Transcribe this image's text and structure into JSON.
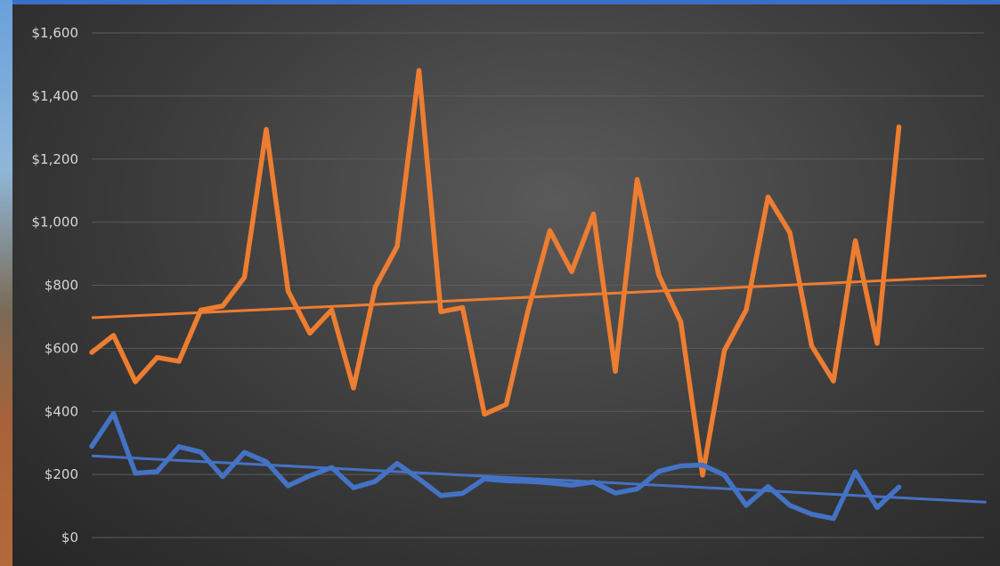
{
  "chart_data": {
    "type": "line",
    "title": "",
    "xlabel": "",
    "ylabel": "",
    "ylim": [
      0,
      1600
    ],
    "yticks": [
      "$0",
      "$200",
      "$400",
      "$600",
      "$800",
      "$1,000",
      "$1,200",
      "$1,400",
      "$1,600"
    ],
    "grid": true,
    "legend": "none",
    "x": [
      1,
      2,
      3,
      4,
      5,
      6,
      7,
      8,
      9,
      10,
      11,
      12,
      13,
      14,
      15,
      16,
      17,
      18,
      19,
      20,
      21,
      22,
      23,
      24,
      25,
      26,
      27,
      28,
      29,
      30,
      31,
      32,
      33,
      34,
      35,
      36,
      37,
      38
    ],
    "series": [
      {
        "color": "#ed7d31",
        "values": [
          587,
          641,
          494,
          571,
          559,
          721,
          734,
          825,
          1294,
          782,
          648,
          722,
          474,
          795,
          923,
          1481,
          716,
          729,
          391,
          422,
          720,
          973,
          843,
          1026,
          527,
          1135,
          831,
          684,
          198,
          593,
          722,
          1080,
          967,
          608,
          496,
          941,
          616,
          1302
        ]
      },
      {
        "color": "#4472c4",
        "values": [
          289,
          393,
          204,
          209,
          288,
          271,
          193,
          270,
          240,
          164,
          196,
          222,
          158,
          178,
          235,
          186,
          133,
          140,
          186,
          180,
          178,
          173,
          166,
          176,
          141,
          154,
          210,
          227,
          230,
          198,
          102,
          162,
          102,
          74,
          60,
          208,
          95,
          160
        ]
      }
    ],
    "trendlines": [
      {
        "color": "#ed7d31",
        "start": 697,
        "end": 830,
        "x_end": 42
      },
      {
        "color": "#4472c4",
        "start": 259,
        "end": 112,
        "x_end": 42
      }
    ]
  }
}
